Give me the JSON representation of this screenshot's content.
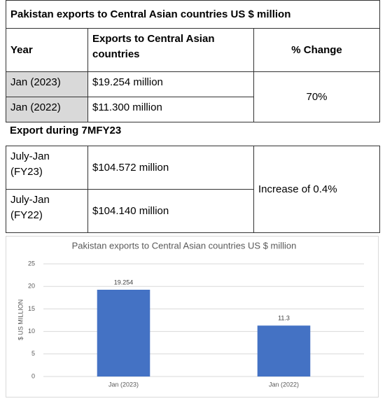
{
  "table": {
    "title": "Pakistan exports to Central Asian countries US $ million",
    "header": [
      "Year",
      "Exports to Central Asian countries",
      "% Change"
    ],
    "rows": [
      [
        "Jan (2023)",
        "$19.254 million",
        "70%"
      ],
      [
        "Jan (2022)",
        "$11.300 million"
      ]
    ],
    "section": "Export during 7MFY23",
    "section_rows": [
      [
        "July-Jan (FY23)",
        "$104.572 million",
        "Increase of 0.4%"
      ],
      [
        "July-Jan (FY22)",
        "$104.140 million"
      ]
    ]
  },
  "chart_data": {
    "type": "bar",
    "title": "Pakistan exports to Central Asian countries US $ million",
    "y_label": "$ US MILLION",
    "categories": [
      "Jan (2023)",
      "Jan (2022)"
    ],
    "values": [
      19.254,
      11.3
    ],
    "color": "#4472c4",
    "ylim": [
      0,
      25
    ],
    "yticks": [
      0,
      5,
      10,
      15,
      20,
      25
    ],
    "grid": true
  }
}
